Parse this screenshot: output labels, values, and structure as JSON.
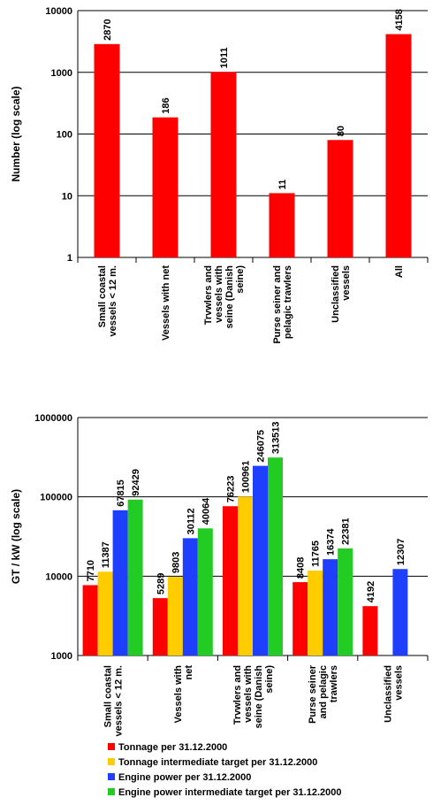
{
  "chart_data": [
    {
      "type": "bar",
      "scale": "log",
      "ylabel": "Number (log scale)",
      "ylim": [
        1,
        10000
      ],
      "yticks": [
        "1",
        "10",
        "100",
        "1000",
        "10000"
      ],
      "categories": [
        [
          "Small coastal",
          "vessels < 12 m."
        ],
        [
          "Vessels with net"
        ],
        [
          "Trvwlers and",
          "vessels with",
          "seine (Danish",
          "seine)"
        ],
        [
          "Purse seiner and",
          "pelagic trawlers"
        ],
        [
          "Unclassified",
          "vessels"
        ],
        [
          "All"
        ]
      ],
      "series": [
        {
          "color": "#ff0000",
          "values": [
            2870,
            186,
            1011,
            11,
            80,
            4158
          ]
        }
      ],
      "grid": true,
      "legend": "none"
    },
    {
      "type": "bar",
      "scale": "log",
      "ylabel": "GT / kW (log scale)",
      "ylim": [
        1000,
        1000000
      ],
      "yticks": [
        "1000",
        "10000",
        "100000",
        "1000000"
      ],
      "categories": [
        [
          "Small coastal",
          "vessels < 12 m."
        ],
        [
          "Vessels with",
          "net"
        ],
        [
          "Trvwlers and",
          "vessels with",
          "seine (Danish",
          "seine)"
        ],
        [
          "Purse seiner",
          "and pelagic",
          "trawlers"
        ],
        [
          "Unclassified",
          "vessels"
        ]
      ],
      "series": [
        {
          "name": "Tonnage per 31.12.2000",
          "color": "#ff0000",
          "values": [
            7710,
            5289,
            76223,
            8408,
            4192
          ]
        },
        {
          "name": "Tonnage intermediate target per 31.12.2000",
          "color": "#ffcc00",
          "values": [
            11387,
            9803,
            100961,
            11765,
            null
          ]
        },
        {
          "name": "Engine power per 31.12.2000",
          "color": "#1f3fff",
          "values": [
            67815,
            30112,
            246075,
            16374,
            12307
          ]
        },
        {
          "name": "Engine power intermediate target per 31.12.2000",
          "color": "#22cc22",
          "values": [
            92429,
            40064,
            313513,
            22381,
            null
          ]
        }
      ],
      "grid": true,
      "legend": "bottom"
    }
  ]
}
